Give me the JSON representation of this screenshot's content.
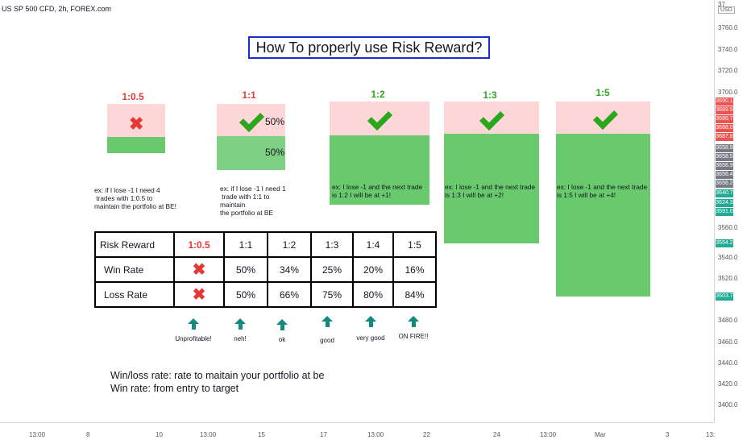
{
  "symbol": "US SP 500 CFD, 2h, FOREX.com",
  "title": "How To properly use Risk Reward?",
  "currency": "USD",
  "boxes": [
    {
      "label": "1:0.5",
      "label_color": "#e53935",
      "mark": "x",
      "note": "ex: if I lose -1 I need 4\n trades with 1:0.5 to\nmaintain the portfolio at BE!"
    },
    {
      "label": "1:1",
      "label_color": "#e53935",
      "mark": "check",
      "win_pct": "50%",
      "loss_pct": "50%",
      "note": "ex: if I lose -1 I need 1\n trade with 1:1 to\nmaintain\nthe portfolio at BE"
    },
    {
      "label": "1:2",
      "label_color": "#2aa71c",
      "mark": "check",
      "note": "ex: I lose -1 and the next trade\nis 1:2 I will be at +1!"
    },
    {
      "label": "1:3",
      "label_color": "#2aa71c",
      "mark": "check",
      "note": "ex: I lose -1 and the next trade\nis 1:3 I will be at +2!"
    },
    {
      "label": "1:5",
      "label_color": "#2aa71c",
      "mark": "check",
      "note": "ex: I lose -1 and the next trade\nis 1:5 I will be at +4!"
    }
  ],
  "table": {
    "header": [
      "Risk Reward",
      "1:0.5",
      "1:1",
      "1:2",
      "1:3",
      "1:4",
      "1:5"
    ],
    "win_rate": [
      "Win Rate",
      "✖",
      "50%",
      "34%",
      "25%",
      "20%",
      "16%"
    ],
    "loss_rate": [
      "Loss Rate",
      "✖",
      "50%",
      "66%",
      "75%",
      "80%",
      "84%"
    ]
  },
  "arrow_labels": [
    "Unprofitable!",
    "neh!",
    "ok",
    "good",
    "very good",
    "ON FIRE!!"
  ],
  "bottom_lines": [
    "Win/loss rate: rate to maitain your portfolio at be",
    "Win rate: from entry to target"
  ],
  "price_labels": [
    "3760.0",
    "3740.0",
    "3720.0",
    "3700.0",
    "3560.0",
    "3540.0",
    "3520.0",
    "3480.0",
    "3460.0",
    "3440.0",
    "3420.0",
    "3400.0"
  ],
  "price_badges": [
    {
      "v": "3690.1",
      "c": "#ef5350"
    },
    {
      "v": "3689.9",
      "c": "#ef5350"
    },
    {
      "v": "3689.7",
      "c": "#ef5350"
    },
    {
      "v": "3688.0",
      "c": "#ef5350"
    },
    {
      "v": "3687.8",
      "c": "#ef5350"
    },
    {
      "v": "3658.9",
      "c": "#787b86"
    },
    {
      "v": "3658.5",
      "c": "#787b86"
    },
    {
      "v": "3656.9",
      "c": "#787b86"
    },
    {
      "v": "3656.4",
      "c": "#787b86"
    },
    {
      "v": "3656.2",
      "c": "#787b86"
    },
    {
      "v": "3640.7",
      "c": "#22ab94"
    },
    {
      "v": "3624.3",
      "c": "#22ab94"
    },
    {
      "v": "3591.0",
      "c": "#22ab94"
    },
    {
      "v": "3554.2",
      "c": "#22ab94"
    },
    {
      "v": "3503.7",
      "c": "#22ab94"
    }
  ],
  "time_labels": [
    "13:00",
    "8",
    "10",
    "13:00",
    "15",
    "17",
    "13:00",
    "22",
    "24",
    "13:00",
    "Mar",
    "3",
    "13:"
  ]
}
